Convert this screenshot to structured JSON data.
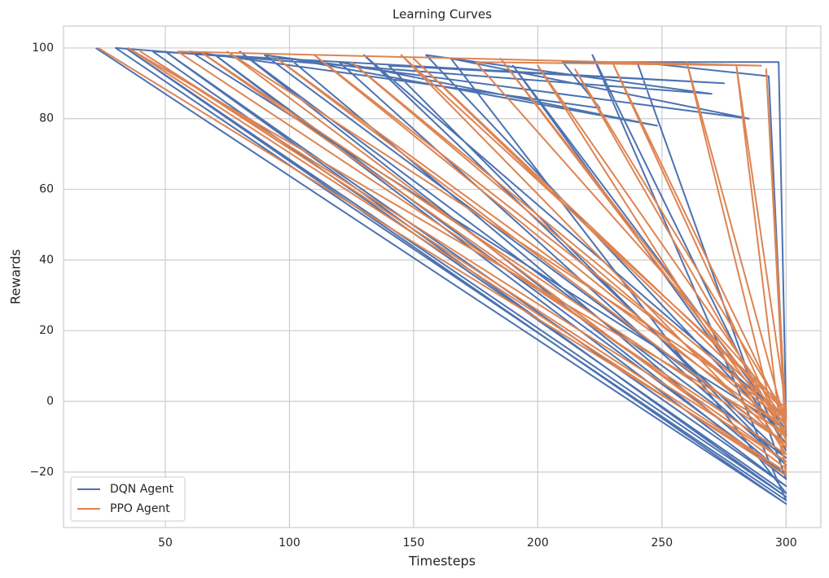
{
  "chart_data": {
    "type": "line",
    "title": "Learning Curves",
    "x_label": "Timesteps",
    "y_label": "Rewards",
    "xlim": [
      9,
      314
    ],
    "ylim": [
      -35.7,
      106.2
    ],
    "xticks": [
      50,
      100,
      150,
      200,
      250,
      300
    ],
    "yticks": [
      {
        "value": -20,
        "label": "−20"
      },
      0,
      20,
      40,
      60,
      80,
      100
    ],
    "grid": true,
    "legend": "lower left",
    "series": [
      {
        "name": "DQN Agent",
        "color": "#4c72b0",
        "x": [
          22,
          300,
          35,
          300,
          50,
          300,
          70,
          300,
          100,
          248,
          120,
          300,
          140,
          275,
          45,
          300,
          165,
          285,
          90,
          300,
          190,
          300,
          60,
          225,
          210,
          297,
          300,
          130,
          300,
          80,
          300,
          240,
          293,
          300,
          155,
          270,
          30,
          300,
          222,
          300
        ],
        "values": [
          100,
          -29,
          99.5,
          -27,
          99,
          -24,
          98,
          -21,
          97,
          78,
          96,
          -18,
          95,
          90,
          99,
          -26,
          97,
          80,
          98,
          -12,
          95,
          -8,
          99,
          83,
          96,
          96,
          -5,
          98,
          -16,
          99,
          -22,
          96,
          92,
          -10,
          98,
          87,
          100,
          -28,
          98,
          -14
        ]
      },
      {
        "name": "PPO Agent",
        "color": "#dd8452",
        "x": [
          23,
          300,
          40,
          300,
          65,
          300,
          95,
          300,
          125,
          300,
          150,
          300,
          175,
          290,
          55,
          300,
          200,
          300,
          110,
          300,
          215,
          300,
          75,
          300,
          260,
          300,
          185,
          300,
          35,
          300,
          280,
          300,
          145,
          300,
          292,
          300,
          230,
          300
        ],
        "values": [
          100,
          -20,
          99,
          -17,
          98.5,
          -12,
          97,
          -8,
          96,
          -5,
          97,
          -3,
          96,
          95,
          99,
          -15,
          95,
          -6,
          98,
          -10,
          94,
          -4,
          99,
          -19,
          96,
          -7,
          97,
          -9,
          100,
          -21,
          95,
          -2,
          98,
          -13,
          94,
          -6,
          96,
          -11
        ]
      }
    ]
  }
}
